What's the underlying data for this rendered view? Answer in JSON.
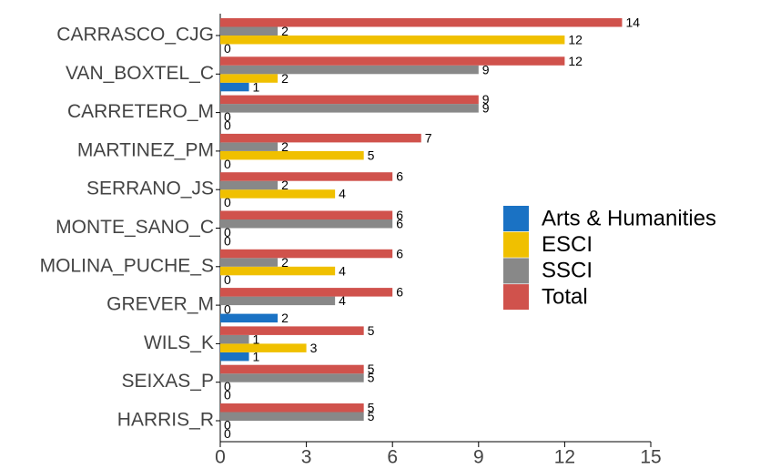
{
  "chart_data": {
    "type": "barh",
    "categories": [
      "CARRASCO_CJG",
      "VAN_BOXTEL_C",
      "CARRETERO_M",
      "MARTINEZ_PM",
      "SERRANO_JS",
      "MONTE_SANO_C",
      "MOLINA_PUCHE_S",
      "GREVER_M",
      "WILS_K",
      "SEIXAS_P",
      "HARRIS_R"
    ],
    "series": [
      {
        "name": "Arts & Humanities",
        "color": "#1a72c4",
        "values": [
          0,
          1,
          0,
          0,
          0,
          0,
          0,
          2,
          1,
          0,
          0
        ]
      },
      {
        "name": "ESCI",
        "color": "#f0c000",
        "values": [
          12,
          2,
          0,
          5,
          4,
          0,
          4,
          0,
          3,
          0,
          0
        ]
      },
      {
        "name": "SSCI",
        "color": "#888888",
        "values": [
          2,
          9,
          9,
          2,
          2,
          6,
          2,
          4,
          1,
          5,
          5
        ]
      },
      {
        "name": "Total",
        "color": "#d0524c",
        "values": [
          14,
          12,
          9,
          7,
          6,
          6,
          6,
          6,
          5,
          5,
          5
        ]
      }
    ],
    "xlim": [
      0,
      15
    ],
    "xticks": [
      0,
      3,
      6,
      9,
      12,
      15
    ],
    "legend": "right"
  }
}
